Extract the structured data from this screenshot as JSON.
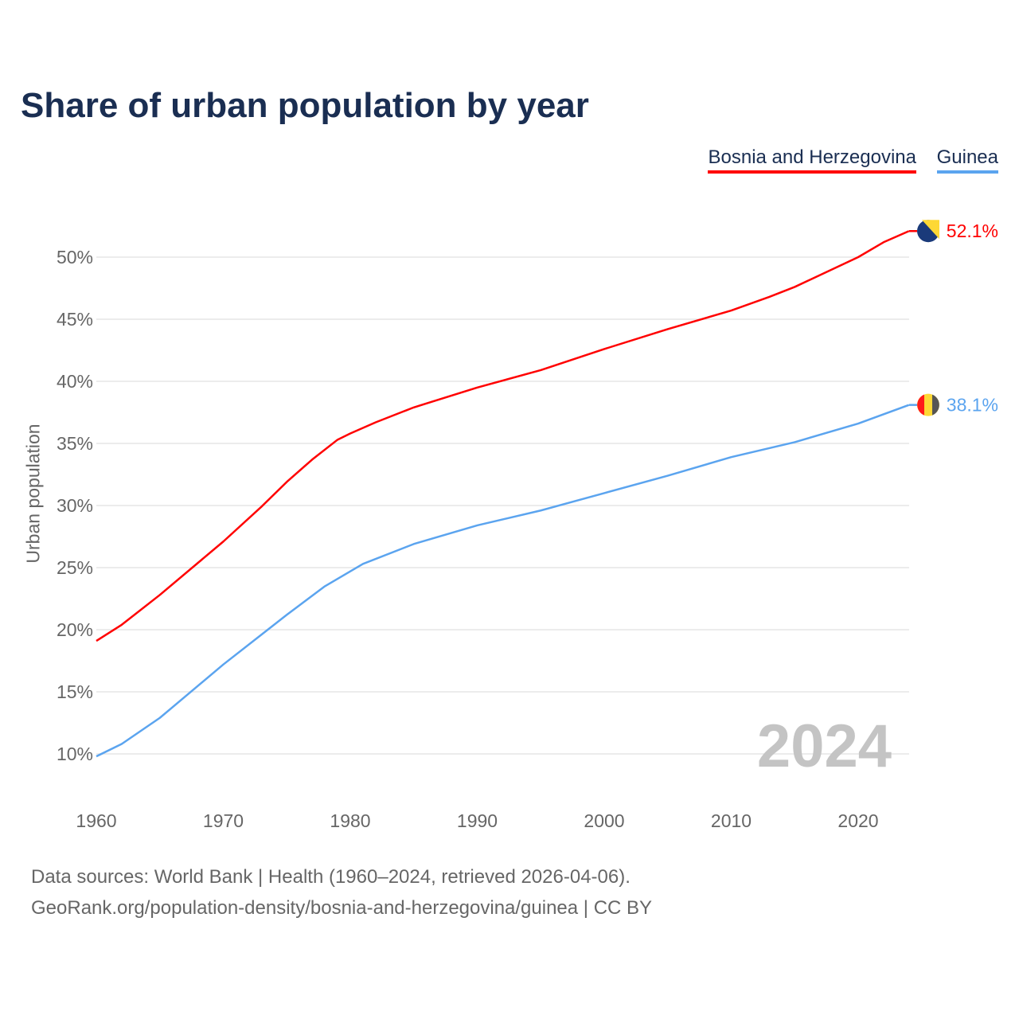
{
  "title": "Share of urban population by year",
  "legend": [
    {
      "label": "Bosnia and Herzegovina",
      "color": "#ff0000"
    },
    {
      "label": "Guinea",
      "color": "#5ba4ef"
    }
  ],
  "footer": {
    "line1": "Data sources: World Bank | Health (1960–2024, retrieved 2026-04-06).",
    "line2": "GeoRank.org/population-density/bosnia-and-herzegovina/guinea | CC BY"
  },
  "chart_data": {
    "type": "line",
    "title": "Share of urban population by year",
    "ylabel": "Urban population",
    "xlabel": "",
    "xlim": [
      1960,
      2024
    ],
    "ylim": [
      7,
      54
    ],
    "xticks": [
      "1960",
      "1970",
      "1980",
      "1990",
      "2000",
      "2010",
      "2020"
    ],
    "yticks": [
      "10%",
      "15%",
      "20%",
      "25%",
      "30%",
      "35%",
      "40%",
      "45%",
      "50%"
    ],
    "year_label": "2024",
    "series": [
      {
        "name": "Bosnia and Herzegovina",
        "color": "#ff0000",
        "end_label": "52.1%",
        "x": [
          1960,
          1962,
          1965,
          1970,
          1973,
          1975,
          1977,
          1979,
          1980,
          1982,
          1985,
          1990,
          1995,
          2000,
          2005,
          2010,
          2013,
          2015,
          2020,
          2022,
          2024
        ],
        "y": [
          19.1,
          20.4,
          22.8,
          27.1,
          29.9,
          31.9,
          33.7,
          35.3,
          35.8,
          36.7,
          37.9,
          39.5,
          40.9,
          42.6,
          44.2,
          45.7,
          46.8,
          47.6,
          50.0,
          51.2,
          52.1
        ]
      },
      {
        "name": "Guinea",
        "color": "#5ba4ef",
        "end_label": "38.1%",
        "x": [
          1960,
          1962,
          1965,
          1970,
          1973,
          1975,
          1978,
          1981,
          1985,
          1990,
          1995,
          2000,
          2005,
          2010,
          2015,
          2020,
          2024
        ],
        "y": [
          9.8,
          10.8,
          12.9,
          17.2,
          19.6,
          21.2,
          23.5,
          25.3,
          26.9,
          28.4,
          29.6,
          31.0,
          32.4,
          33.9,
          35.1,
          36.6,
          38.1
        ]
      }
    ]
  }
}
